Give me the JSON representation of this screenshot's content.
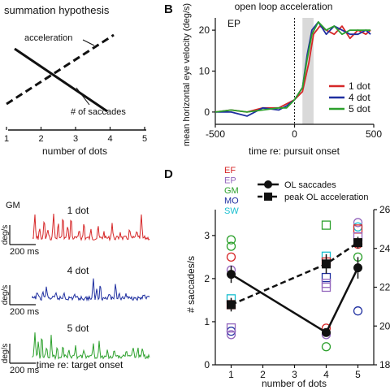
{
  "chart_data": [
    {
      "panel": "A",
      "type": "line",
      "title": "summation hypothesis",
      "xlabel": "number of dots",
      "x_ticks": [
        "1",
        "2",
        "3",
        "4",
        "5"
      ],
      "series": [
        {
          "name": "acceleration",
          "style": "dashed",
          "x": [
            1,
            5
          ],
          "trend": "increasing"
        },
        {
          "name": "# of saccades",
          "style": "solid",
          "x": [
            1,
            5
          ],
          "trend": "decreasing"
        }
      ],
      "grid": false
    },
    {
      "panel": "B",
      "type": "line",
      "annotation": "open loop acceleration",
      "subject": "EP",
      "xlabel": "time re: pursuit onset",
      "ylabel": "mean horizontal eye velocity (deg/s)",
      "xlim": [
        -500,
        500
      ],
      "ylim": [
        -3,
        23
      ],
      "x_ticks": [
        "-500",
        "0",
        "500"
      ],
      "y_ticks": [
        "0",
        "10",
        "20"
      ],
      "shaded_window": [
        50,
        120
      ],
      "legend_position": "bottom-right",
      "series": [
        {
          "name": "1 dot",
          "color": "#d62728",
          "x": [
            -500,
            -400,
            -300,
            -200,
            -100,
            -50,
            0,
            50,
            90,
            120,
            160,
            200,
            250,
            300,
            350,
            400,
            450,
            480
          ],
          "y": [
            0,
            0.5,
            0,
            1,
            1,
            2,
            3,
            5,
            12,
            19,
            21,
            20,
            19,
            21,
            18,
            20,
            19,
            20
          ]
        },
        {
          "name": "4 dot",
          "color": "#1f2fa0",
          "x": [
            -500,
            -400,
            -300,
            -200,
            -100,
            -50,
            0,
            50,
            80,
            110,
            150,
            200,
            250,
            300,
            350,
            400,
            450,
            480
          ],
          "y": [
            0,
            0,
            -1,
            1,
            0.5,
            1.5,
            3,
            6,
            14,
            20,
            22,
            19,
            21,
            20,
            19,
            19,
            20,
            19
          ]
        },
        {
          "name": "5 dot",
          "color": "#2ca02c",
          "x": [
            -500,
            -400,
            -300,
            -200,
            -100,
            -50,
            0,
            50,
            80,
            110,
            150,
            200,
            250,
            300,
            350,
            400,
            450,
            480
          ],
          "y": [
            0,
            0.5,
            0,
            0.5,
            1,
            1,
            3,
            6,
            13,
            19,
            22,
            20,
            21,
            19,
            20,
            20,
            20,
            20
          ]
        }
      ]
    },
    {
      "panel": "C",
      "type": "line",
      "subject": "GM",
      "xlabel": "time re: target onset",
      "ylabel": "deg/s",
      "scale_bar": "200 ms",
      "traces": [
        {
          "name": "1 dot",
          "color": "#d62728"
        },
        {
          "name": "4 dot",
          "color": "#1f2fa0"
        },
        {
          "name": "5 dot",
          "color": "#2ca02c"
        }
      ]
    },
    {
      "panel": "D",
      "type": "line",
      "xlabel": "number of dots",
      "ylabel": "# saccades/s",
      "xlim": [
        0.5,
        5.5
      ],
      "ylim": [
        0,
        3.6
      ],
      "y2lim": [
        18,
        26
      ],
      "x_ticks": [
        "1",
        "2",
        "3",
        "4",
        "5"
      ],
      "y_ticks": [
        "0",
        "1",
        "2",
        "3"
      ],
      "y2_ticks": [
        "18",
        "20",
        "22",
        "24",
        "26"
      ],
      "subjects": [
        {
          "name": "EF",
          "color": "#d62728"
        },
        {
          "name": "EP",
          "color": "#9467bd"
        },
        {
          "name": "GM",
          "color": "#2ca02c"
        },
        {
          "name": "MO",
          "color": "#1f2fa0"
        },
        {
          "name": "SW",
          "color": "#17becf"
        }
      ],
      "series": [
        {
          "name": "OL saccades",
          "style": "solid-circle",
          "axis": "left",
          "x": [
            1,
            4,
            5
          ],
          "y": [
            2.1,
            0.75,
            2.25
          ],
          "err": [
            0.2,
            0.08,
            0.25
          ]
        },
        {
          "name": "peak OL acceleration",
          "style": "dashed-square",
          "axis": "right",
          "x": [
            1,
            4,
            5
          ],
          "y": [
            21.1,
            23.2,
            24.3
          ],
          "err": [
            0.35,
            0.5,
            0.3
          ]
        }
      ],
      "subject_circles": [
        {
          "x": 1,
          "y": 2.9,
          "color": "#2ca02c"
        },
        {
          "x": 1,
          "y": 2.75,
          "color": "#2ca02c"
        },
        {
          "x": 1,
          "y": 2.5,
          "color": "#d62728"
        },
        {
          "x": 1,
          "y": 2.2,
          "color": "#9467bd"
        },
        {
          "x": 1,
          "y": 0.78,
          "color": "#1f2fa0"
        },
        {
          "x": 1,
          "y": 0.7,
          "color": "#9467bd"
        },
        {
          "x": 4,
          "y": 0.85,
          "color": "#d62728"
        },
        {
          "x": 4,
          "y": 0.7,
          "color": "#9467bd"
        },
        {
          "x": 4,
          "y": 0.42,
          "color": "#2ca02c"
        },
        {
          "x": 5,
          "y": 3.3,
          "color": "#9467bd"
        },
        {
          "x": 5,
          "y": 3.2,
          "color": "#17becf"
        },
        {
          "x": 5,
          "y": 2.8,
          "color": "#d62728"
        },
        {
          "x": 5,
          "y": 2.5,
          "color": "#2ca02c"
        },
        {
          "x": 5,
          "y": 1.25,
          "color": "#1f2fa0"
        }
      ],
      "subject_squares": [
        {
          "x": 1,
          "y": 21.4,
          "color": "#17becf"
        },
        {
          "x": 1,
          "y": 21.1,
          "color": "#d62728"
        },
        {
          "x": 1,
          "y": 19.9,
          "color": "#9467bd"
        },
        {
          "x": 4,
          "y": 25.2,
          "color": "#2ca02c"
        },
        {
          "x": 4,
          "y": 23.6,
          "color": "#17becf"
        },
        {
          "x": 4,
          "y": 23.3,
          "color": "#d62728"
        },
        {
          "x": 4,
          "y": 22.5,
          "color": "#1f2fa0"
        },
        {
          "x": 4,
          "y": 22.2,
          "color": "#9467bd"
        },
        {
          "x": 4,
          "y": 22.0,
          "color": "#9467bd"
        },
        {
          "x": 5,
          "y": 25.0,
          "color": "#d62728"
        },
        {
          "x": 5,
          "y": 24.6,
          "color": "#9467bd"
        }
      ]
    }
  ]
}
